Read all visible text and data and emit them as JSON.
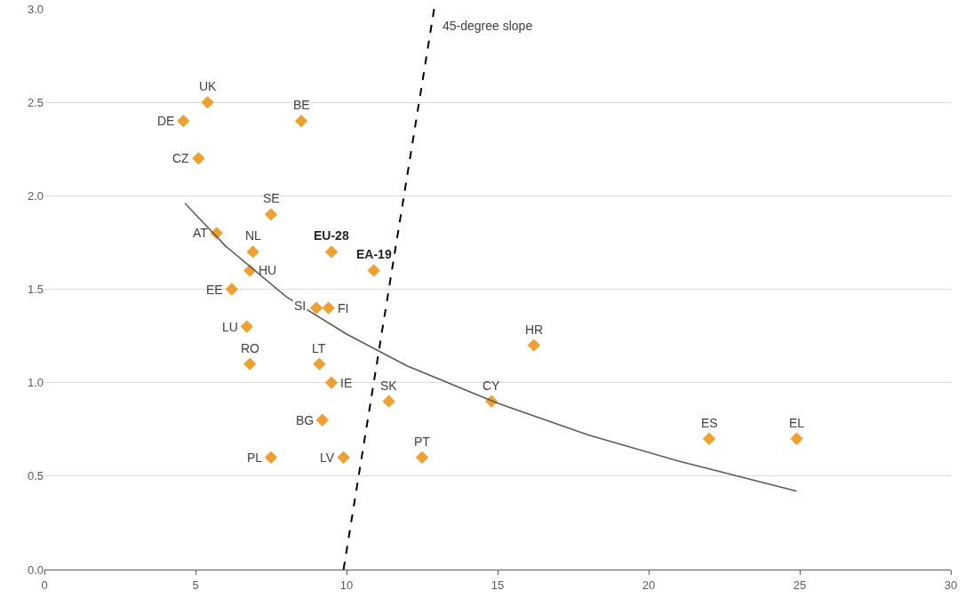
{
  "chart_data": {
    "type": "scatter",
    "xlim": [
      0,
      30
    ],
    "ylim": [
      0,
      3
    ],
    "xticks": [
      0,
      5,
      10,
      15,
      20,
      25,
      30
    ],
    "yticks": [
      {
        "value": 0,
        "label": "0.0"
      },
      {
        "value": 0.5,
        "label": "0.5"
      },
      {
        "value": 1,
        "label": "1.0"
      },
      {
        "value": 1.5,
        "label": "1.5"
      },
      {
        "value": 2,
        "label": "2.0"
      },
      {
        "value": 2.5,
        "label": "2.5"
      },
      {
        "value": 3,
        "label": "3.0"
      }
    ],
    "grid": "y",
    "series": [
      {
        "color": "#f0a030",
        "marker": "diamond",
        "x": [
          5.4,
          4.6,
          5.1,
          8.5,
          7.5,
          5.7,
          6.9,
          9.5,
          10.9,
          6.8,
          6.2,
          9.0,
          9.4,
          6.7,
          6.8,
          9.1,
          9.5,
          9.2,
          7.5,
          9.9,
          11.4,
          12.5,
          14.8,
          16.2,
          22.0,
          24.9
        ],
        "values": [
          2.5,
          2.4,
          2.2,
          2.4,
          1.9,
          1.8,
          1.7,
          1.7,
          1.6,
          1.6,
          1.5,
          1.4,
          1.4,
          1.3,
          1.1,
          1.1,
          1.0,
          0.8,
          0.6,
          0.6,
          0.9,
          0.6,
          0.9,
          1.2,
          0.7,
          0.7
        ]
      },
      {
        "type": "line",
        "color": "#595959",
        "marker": "none",
        "line_style": "solid",
        "x": [
          4.65,
          6,
          8,
          10,
          12,
          15,
          18,
          21,
          24.9
        ],
        "values": [
          1.96,
          1.73,
          1.46,
          1.26,
          1.09,
          0.89,
          0.72,
          0.58,
          0.42
        ]
      },
      {
        "type": "line",
        "color": "#000000",
        "marker": "none",
        "line_style": "dashed",
        "x": [
          9.9,
          12.9
        ],
        "values": [
          0,
          3.0
        ]
      }
    ],
    "annotations": [
      "45-degree slope",
      {
        "text": "UK",
        "x": 5.4,
        "y": 2.5
      },
      {
        "text": "DE",
        "x": 4.6,
        "y": 2.4
      },
      {
        "text": "CZ",
        "x": 5.1,
        "y": 2.2
      },
      {
        "text": "BE",
        "x": 8.5,
        "y": 2.4
      },
      {
        "text": "SE",
        "x": 7.5,
        "y": 1.9
      },
      {
        "text": "AT",
        "x": 5.7,
        "y": 1.8
      },
      {
        "text": "NL",
        "x": 6.9,
        "y": 1.7
      },
      {
        "text": "EU-28",
        "x": 9.5,
        "y": 1.7
      },
      {
        "text": "EA-19",
        "x": 10.9,
        "y": 1.6
      },
      {
        "text": "HU",
        "x": 6.8,
        "y": 1.6
      },
      {
        "text": "EE",
        "x": 6.2,
        "y": 1.5
      },
      {
        "text": "SI",
        "x": 9.0,
        "y": 1.4
      },
      {
        "text": "FI",
        "x": 9.4,
        "y": 1.4
      },
      {
        "text": "LU",
        "x": 6.7,
        "y": 1.3
      },
      {
        "text": "RO",
        "x": 6.8,
        "y": 1.1
      },
      {
        "text": "LT",
        "x": 9.1,
        "y": 1.1
      },
      {
        "text": "IE",
        "x": 9.5,
        "y": 1.0
      },
      {
        "text": "BG",
        "x": 9.2,
        "y": 0.8
      },
      {
        "text": "PL",
        "x": 7.5,
        "y": 0.6
      },
      {
        "text": "LV",
        "x": 9.9,
        "y": 0.6
      },
      {
        "text": "SK",
        "x": 11.4,
        "y": 0.9
      },
      {
        "text": "PT",
        "x": 12.5,
        "y": 0.6
      },
      {
        "text": "CY",
        "x": 14.8,
        "y": 0.9
      },
      {
        "text": "HR",
        "x": 16.2,
        "y": 1.2
      },
      {
        "text": "ES",
        "x": 22.0,
        "y": 0.7
      },
      {
        "text": "EL",
        "x": 24.9,
        "y": 0.7
      }
    ]
  }
}
